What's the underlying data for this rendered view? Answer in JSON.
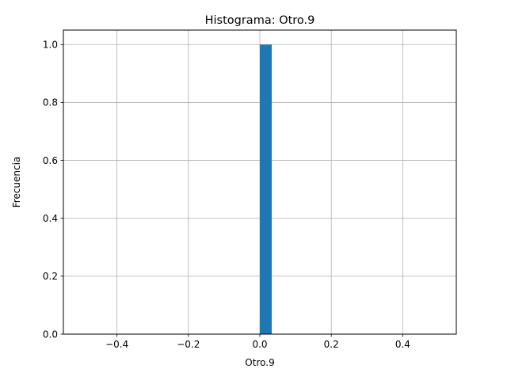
{
  "chart_data": {
    "type": "bar",
    "title": "Histograma: Otro.9",
    "xlabel": "Otro.9",
    "ylabel": "Frecuencia",
    "xlim": [
      -0.55,
      0.55
    ],
    "ylim": [
      0,
      1.05
    ],
    "x_ticks": [
      -0.4,
      -0.2,
      0.0,
      0.2,
      0.4
    ],
    "x_tick_labels": [
      "−0.4",
      "−0.2",
      "0.0",
      "0.2",
      "0.4"
    ],
    "y_ticks": [
      0.0,
      0.2,
      0.4,
      0.6,
      0.8,
      1.0
    ],
    "y_tick_labels": [
      "0.0",
      "0.2",
      "0.4",
      "0.6",
      "0.8",
      "1.0"
    ],
    "bins": [
      {
        "start": 0.0,
        "end": 0.0333,
        "count": 1
      }
    ],
    "grid": true,
    "bar_color": "#1f77b4",
    "grid_color": "#b0b0b0"
  }
}
